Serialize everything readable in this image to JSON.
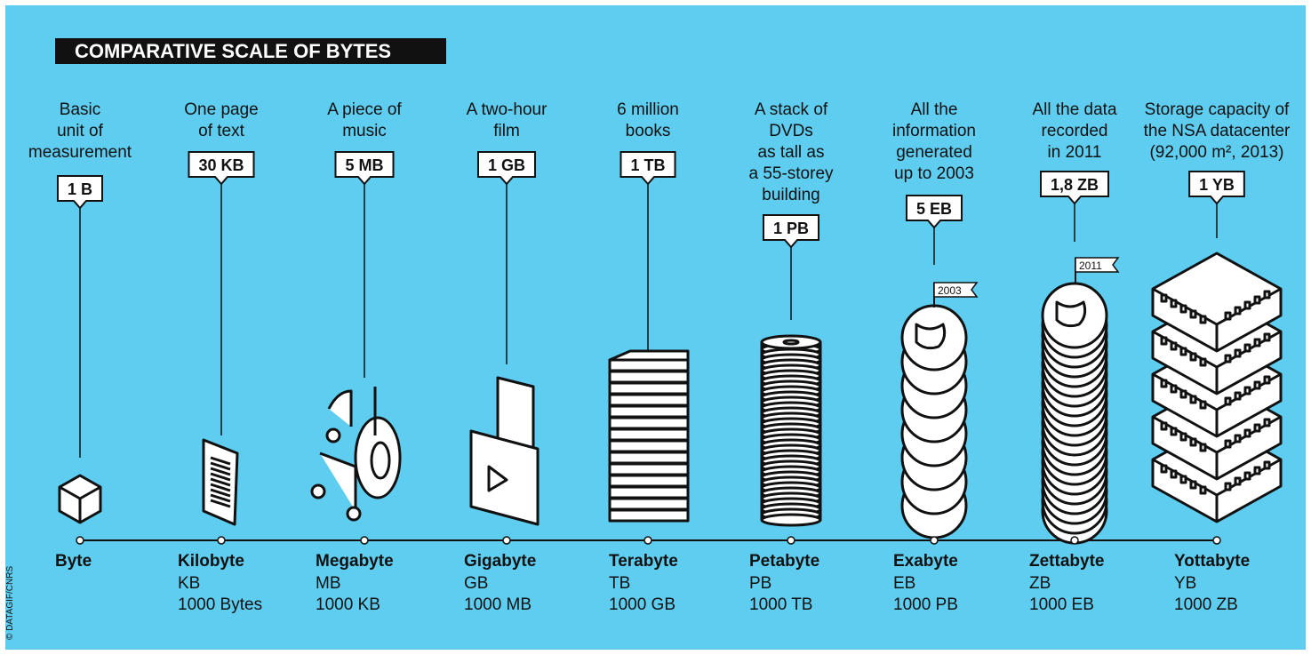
{
  "title": "COMPARATIVE SCALE OF BYTES",
  "credit": "© DATAGIF/CNRS",
  "flags": [
    "2003",
    "2011"
  ],
  "items": [
    {
      "description": [
        "Basic",
        "unit of",
        "measurement"
      ],
      "badge": "1 B",
      "name": "Byte"
    },
    {
      "description": [
        "One page",
        "of text"
      ],
      "badge": "30 KB",
      "name": "Kilobyte",
      "abbr": "KB",
      "equivalent": "1000 Bytes"
    },
    {
      "description": [
        "A piece of",
        "music"
      ],
      "badge": "5 MB",
      "name": "Megabyte",
      "abbr": "MB",
      "equivalent": "1000 KB"
    },
    {
      "description": [
        "A two-hour",
        "film"
      ],
      "badge": "1 GB",
      "name": "Gigabyte",
      "abbr": "GB",
      "equivalent": "1000 MB"
    },
    {
      "description": [
        "6 million",
        "books"
      ],
      "badge": "1 TB",
      "name": "Terabyte",
      "abbr": "TB",
      "equivalent": "1000 GB"
    },
    {
      "description": [
        "A stack of",
        "DVDs",
        "as tall as",
        "a 55-storey",
        "building"
      ],
      "badge": "1 PB",
      "name": "Petabyte",
      "abbr": "PB",
      "equivalent": "1000 TB"
    },
    {
      "description": [
        "All the",
        "information",
        "generated",
        "up to 2003"
      ],
      "badge": "5 EB",
      "name": "Exabyte",
      "abbr": "EB",
      "equivalent": "1000 PB"
    },
    {
      "description": [
        "All the data",
        "recorded",
        "in 2011"
      ],
      "badge": "1,8 ZB",
      "name": "Zettabyte",
      "abbr": "ZB",
      "equivalent": "1000 EB"
    },
    {
      "description": [
        "Storage capacity of",
        "the NSA datacenter",
        "(92,000 m², 2013)"
      ],
      "badge": "1 YB",
      "name": "Yottabyte",
      "abbr": "YB",
      "equivalent": "1000 ZB"
    }
  ]
}
